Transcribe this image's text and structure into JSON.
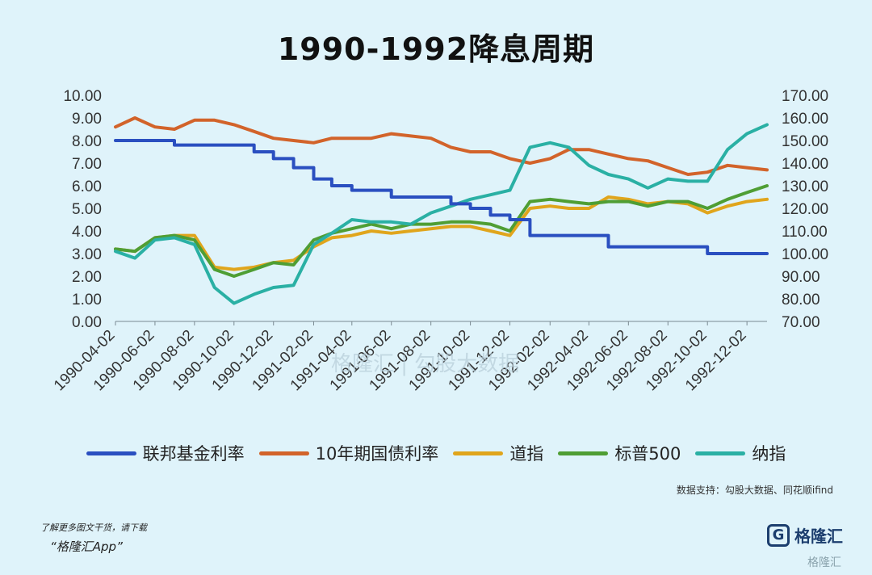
{
  "title": "1990-1992降息周期",
  "legend": [
    {
      "label": "联邦基金利率",
      "color": "#2a4fc0"
    },
    {
      "label": "10年期国债利率",
      "color": "#d2632a"
    },
    {
      "label": "道指",
      "color": "#e0a51c"
    },
    {
      "label": "标普500",
      "color": "#4f9e34"
    },
    {
      "label": "纳指",
      "color": "#2ab0a4"
    }
  ],
  "source": "数据支持：勾股大数据、同花顺ifind",
  "footer": {
    "note": "了解更多图文干货，请下载",
    "app": "“格隆汇App”",
    "brand": "格隆汇",
    "brand_logo": "G",
    "watermark": "格隆汇 | 勾股大数据",
    "corner_watermark": "格隆汇"
  },
  "chart_data": {
    "type": "line",
    "title": "1990-1992降息周期",
    "x_ticks": [
      "1990-04-02",
      "1990-06-02",
      "1990-08-02",
      "1990-10-02",
      "1990-12-02",
      "1991-02-02",
      "1991-04-02",
      "1991-06-02",
      "1991-08-02",
      "1991-10-02",
      "1991-12-02",
      "1992-02-02",
      "1992-04-02",
      "1992-06-02",
      "1992-08-02",
      "1992-10-02",
      "1992-12-02"
    ],
    "y_left": {
      "min": 0,
      "max": 10,
      "ticks": [
        "0.00",
        "1.00",
        "2.00",
        "3.00",
        "4.00",
        "5.00",
        "6.00",
        "7.00",
        "8.00",
        "9.00",
        "10.00"
      ]
    },
    "y_right": {
      "min": 70,
      "max": 170,
      "ticks": [
        "70.00",
        "80.00",
        "90.00",
        "100.00",
        "110.00",
        "120.00",
        "130.00",
        "140.00",
        "150.00",
        "160.00",
        "170.00"
      ]
    },
    "legend_position": "bottom",
    "x": [
      "1990-04-02",
      "1990-05-02",
      "1990-06-02",
      "1990-07-02",
      "1990-08-02",
      "1990-09-02",
      "1990-10-02",
      "1990-11-02",
      "1990-12-02",
      "1991-01-02",
      "1991-02-02",
      "1991-03-02",
      "1991-04-02",
      "1991-05-02",
      "1991-06-02",
      "1991-07-02",
      "1991-08-02",
      "1991-09-02",
      "1991-10-02",
      "1991-11-02",
      "1991-12-02",
      "1992-01-02",
      "1992-02-02",
      "1992-03-02",
      "1992-04-02",
      "1992-05-02",
      "1992-06-02",
      "1992-07-02",
      "1992-08-02",
      "1992-09-02",
      "1992-10-02",
      "1992-11-02",
      "1992-12-02",
      "1993-01-02"
    ],
    "series": [
      {
        "name": "联邦基金利率",
        "axis": "left",
        "step": true,
        "color": "#2a4fc0",
        "values": [
          8.0,
          8.0,
          8.0,
          7.8,
          7.8,
          7.8,
          7.8,
          7.5,
          7.2,
          6.8,
          6.3,
          6.0,
          5.8,
          5.8,
          5.5,
          5.5,
          5.5,
          5.2,
          5.0,
          4.7,
          4.5,
          3.8,
          3.8,
          3.8,
          3.8,
          3.3,
          3.3,
          3.3,
          3.3,
          3.3,
          3.0,
          3.0,
          3.0,
          3.0
        ]
      },
      {
        "name": "10年期国债利率",
        "axis": "left",
        "color": "#d2632a",
        "values": [
          8.6,
          9.0,
          8.6,
          8.5,
          8.9,
          8.9,
          8.7,
          8.4,
          8.1,
          8.0,
          7.9,
          8.1,
          8.1,
          8.1,
          8.3,
          8.2,
          8.1,
          7.7,
          7.5,
          7.5,
          7.2,
          7.0,
          7.2,
          7.6,
          7.6,
          7.4,
          7.2,
          7.1,
          6.8,
          6.5,
          6.6,
          6.9,
          6.8,
          6.7
        ]
      },
      {
        "name": "道指",
        "axis": "right",
        "color": "#e0a51c",
        "values": [
          102,
          101,
          107,
          108,
          108,
          94,
          93,
          94,
          96,
          97,
          103,
          107,
          108,
          110,
          109,
          110,
          111,
          112,
          112,
          110,
          108,
          120,
          121,
          120,
          120,
          125,
          124,
          122,
          123,
          122,
          118,
          121,
          123,
          124
        ]
      },
      {
        "name": "标普500",
        "axis": "right",
        "color": "#4f9e34",
        "values": [
          102,
          101,
          107,
          108,
          106,
          93,
          90,
          93,
          96,
          95,
          106,
          109,
          111,
          113,
          111,
          113,
          113,
          114,
          114,
          113,
          110,
          123,
          124,
          123,
          122,
          123,
          123,
          121,
          123,
          123,
          120,
          124,
          127,
          130
        ]
      },
      {
        "name": "纳指",
        "axis": "right",
        "color": "#2ab0a4",
        "values": [
          101,
          98,
          106,
          107,
          104,
          85,
          78,
          82,
          85,
          86,
          104,
          109,
          115,
          114,
          114,
          113,
          118,
          121,
          124,
          126,
          128,
          147,
          149,
          147,
          139,
          135,
          133,
          129,
          133,
          132,
          132,
          146,
          153,
          157
        ]
      }
    ]
  }
}
